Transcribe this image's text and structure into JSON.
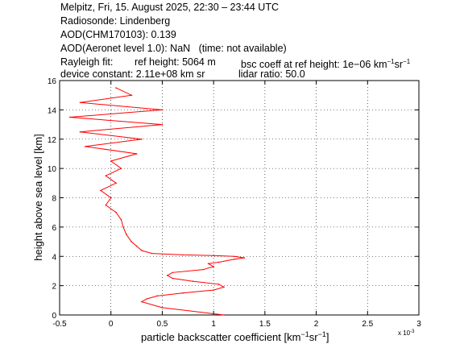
{
  "header": {
    "line1": "Melpitz, Fri, 15. August 2025, 22:30 – 23:44 UTC",
    "line2": "Radiosonde: Lindenberg",
    "line3": "AOD(CHM170103): 0.139",
    "line4_a": "AOD(Aeronet level 1.0): NaN",
    "line4_b": "(time: not available)",
    "rayleigh_label": "Rayleigh fit:",
    "ref_height": "ref height: 5064 m",
    "bsc_coeff": "bsc coeff at ref height: 1e−06 km",
    "bsc_unit_exp1": "−1",
    "bsc_unit_sr": "sr",
    "bsc_unit_exp2": "−1",
    "device_constant": "device constant: 2.11e+08 km sr",
    "lidar_ratio": "lidar ratio: 50.0"
  },
  "colors": {
    "profile": "#ff0000",
    "axes": "#000000",
    "grid": "#000000"
  },
  "chart_data": {
    "type": "line",
    "title": "",
    "xlabel_main": "particle backscatter coefficient [km",
    "xlabel_exp1": "−1",
    "xlabel_sr": "sr",
    "xlabel_exp2": "−1",
    "xlabel_close": "]",
    "ylabel": "height above sea level [km]",
    "x_multiplier_base": "x 10",
    "x_multiplier_exp": "-3",
    "xlim": [
      -0.5,
      3
    ],
    "ylim": [
      0,
      16
    ],
    "xticks": [
      "-0.5",
      "0",
      "0.5",
      "1",
      "1.5",
      "2",
      "2.5",
      "3"
    ],
    "yticks": [
      "0",
      "2",
      "4",
      "6",
      "8",
      "10",
      "12",
      "14",
      "16"
    ],
    "grid": true,
    "series": [
      {
        "x": [
          1.1,
          0.5,
          0.3,
          0.35,
          0.45,
          0.7,
          1.0,
          1.1,
          1.05,
          0.8,
          0.6,
          0.55,
          0.6,
          0.9,
          1.0,
          0.95,
          1.05,
          1.2,
          1.3,
          1.2,
          1.0,
          0.7,
          0.4,
          0.3,
          0.25,
          0.2,
          0.15,
          0.12,
          0.1,
          0.05,
          -0.05,
          0.0,
          -0.1,
          0.05,
          -0.05,
          0.1,
          0.0,
          0.25,
          -0.25,
          0.3,
          -0.3,
          0.5,
          -0.4,
          0.5,
          -0.3,
          0.2,
          0.05
        ],
        "y": [
          0.0,
          0.5,
          0.9,
          1.1,
          1.3,
          1.5,
          1.7,
          1.9,
          2.1,
          2.3,
          2.5,
          2.7,
          2.9,
          3.1,
          3.3,
          3.5,
          3.6,
          3.8,
          3.9,
          4.0,
          4.05,
          4.1,
          4.2,
          4.4,
          4.7,
          5.0,
          5.5,
          6.0,
          6.5,
          7.0,
          7.5,
          8.0,
          8.5,
          9.0,
          9.5,
          10.0,
          10.5,
          11.0,
          11.5,
          12.0,
          12.5,
          13.0,
          13.5,
          14.0,
          14.5,
          15.0,
          15.5
        ]
      }
    ]
  }
}
